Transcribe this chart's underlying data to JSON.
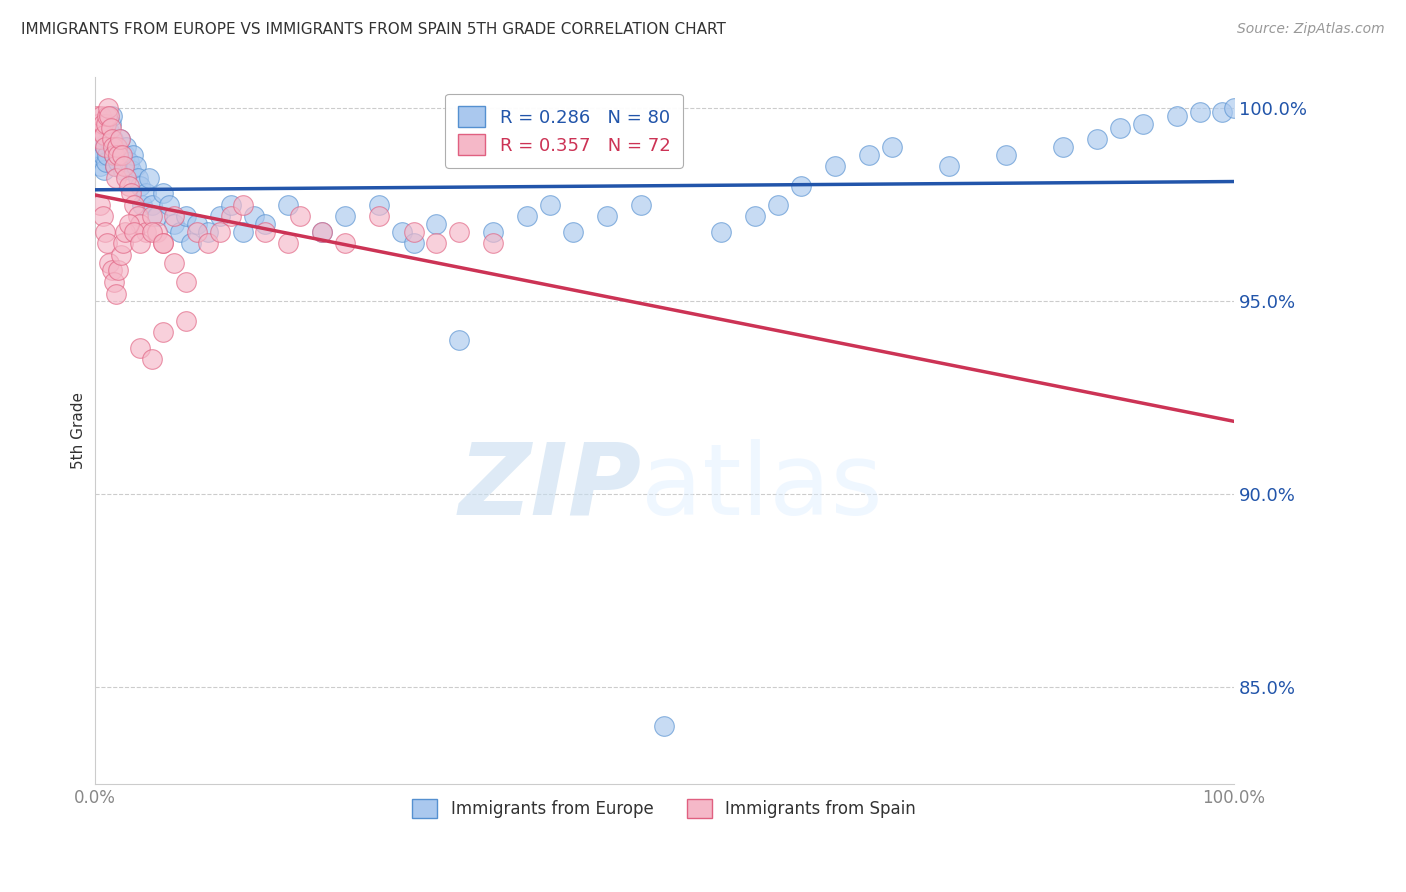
{
  "title": "IMMIGRANTS FROM EUROPE VS IMMIGRANTS FROM SPAIN 5TH GRADE CORRELATION CHART",
  "source_text": "Source: ZipAtlas.com",
  "ylabel": "5th Grade",
  "watermark_zip": "ZIP",
  "watermark_atlas": "atlas",
  "xlim": [
    0.0,
    1.0
  ],
  "ylim": [
    0.825,
    1.008
  ],
  "yticks": [
    0.85,
    0.9,
    0.95,
    1.0
  ],
  "ytick_labels": [
    "85.0%",
    "90.0%",
    "95.0%",
    "100.0%"
  ],
  "xticks": [
    0.0,
    0.1,
    0.2,
    0.3,
    0.4,
    0.5,
    0.6,
    0.7,
    0.8,
    0.9,
    1.0
  ],
  "xtick_labels_show": [
    "0.0%",
    "",
    "",
    "",
    "",
    "",
    "",
    "",
    "",
    "",
    "100.0%"
  ],
  "blue_color": "#aac8ee",
  "pink_color": "#f5b8c8",
  "blue_edge_color": "#5590d0",
  "pink_edge_color": "#e06080",
  "blue_line_color": "#2255aa",
  "pink_line_color": "#cc3355",
  "legend_blue_R": "0.286",
  "legend_blue_N": "80",
  "legend_pink_R": "0.357",
  "legend_pink_N": "72",
  "legend_blue_label": "Immigrants from Europe",
  "legend_pink_label": "Immigrants from Spain",
  "blue_x": [
    0.003,
    0.004,
    0.005,
    0.006,
    0.007,
    0.008,
    0.009,
    0.01,
    0.011,
    0.012,
    0.013,
    0.014,
    0.015,
    0.016,
    0.017,
    0.018,
    0.019,
    0.02,
    0.021,
    0.022,
    0.023,
    0.025,
    0.027,
    0.028,
    0.03,
    0.032,
    0.034,
    0.036,
    0.038,
    0.04,
    0.042,
    0.045,
    0.048,
    0.05,
    0.055,
    0.06,
    0.065,
    0.07,
    0.075,
    0.08,
    0.085,
    0.09,
    0.1,
    0.11,
    0.12,
    0.13,
    0.14,
    0.15,
    0.17,
    0.2,
    0.22,
    0.25,
    0.27,
    0.28,
    0.3,
    0.32,
    0.35,
    0.38,
    0.4,
    0.42,
    0.45,
    0.48,
    0.5,
    0.55,
    0.58,
    0.6,
    0.62,
    0.65,
    0.68,
    0.7,
    0.75,
    0.8,
    0.85,
    0.88,
    0.9,
    0.92,
    0.95,
    0.97,
    0.99,
    1.0
  ],
  "blue_y": [
    0.99,
    0.988,
    0.985,
    0.992,
    0.988,
    0.984,
    0.99,
    0.986,
    0.988,
    0.992,
    0.994,
    0.996,
    0.998,
    0.992,
    0.988,
    0.985,
    0.99,
    0.988,
    0.986,
    0.992,
    0.988,
    0.984,
    0.988,
    0.99,
    0.986,
    0.984,
    0.988,
    0.985,
    0.982,
    0.98,
    0.975,
    0.978,
    0.982,
    0.975,
    0.972,
    0.978,
    0.975,
    0.97,
    0.968,
    0.972,
    0.965,
    0.97,
    0.968,
    0.972,
    0.975,
    0.968,
    0.972,
    0.97,
    0.975,
    0.968,
    0.972,
    0.975,
    0.968,
    0.965,
    0.97,
    0.94,
    0.968,
    0.972,
    0.975,
    0.968,
    0.972,
    0.975,
    0.84,
    0.968,
    0.972,
    0.975,
    0.98,
    0.985,
    0.988,
    0.99,
    0.985,
    0.988,
    0.99,
    0.992,
    0.995,
    0.996,
    0.998,
    0.999,
    0.999,
    1.0
  ],
  "pink_x": [
    0.002,
    0.003,
    0.004,
    0.005,
    0.006,
    0.007,
    0.008,
    0.009,
    0.01,
    0.011,
    0.012,
    0.013,
    0.014,
    0.015,
    0.016,
    0.017,
    0.018,
    0.019,
    0.02,
    0.021,
    0.022,
    0.024,
    0.026,
    0.028,
    0.03,
    0.032,
    0.035,
    0.038,
    0.04,
    0.045,
    0.05,
    0.055,
    0.06,
    0.07,
    0.08,
    0.09,
    0.1,
    0.11,
    0.12,
    0.13,
    0.15,
    0.17,
    0.18,
    0.2,
    0.22,
    0.25,
    0.28,
    0.3,
    0.32,
    0.35,
    0.005,
    0.007,
    0.009,
    0.011,
    0.013,
    0.015,
    0.017,
    0.019,
    0.021,
    0.023,
    0.025,
    0.027,
    0.03,
    0.035,
    0.04,
    0.05,
    0.06,
    0.07,
    0.08,
    0.04,
    0.05,
    0.06
  ],
  "pink_y": [
    0.998,
    0.996,
    0.994,
    0.992,
    0.998,
    0.996,
    0.993,
    0.99,
    0.996,
    0.998,
    1.0,
    0.998,
    0.995,
    0.992,
    0.99,
    0.988,
    0.985,
    0.982,
    0.99,
    0.988,
    0.992,
    0.988,
    0.985,
    0.982,
    0.98,
    0.978,
    0.975,
    0.972,
    0.97,
    0.968,
    0.972,
    0.968,
    0.965,
    0.972,
    0.945,
    0.968,
    0.965,
    0.968,
    0.972,
    0.975,
    0.968,
    0.965,
    0.972,
    0.968,
    0.965,
    0.972,
    0.968,
    0.965,
    0.968,
    0.965,
    0.975,
    0.972,
    0.968,
    0.965,
    0.96,
    0.958,
    0.955,
    0.952,
    0.958,
    0.962,
    0.965,
    0.968,
    0.97,
    0.968,
    0.965,
    0.968,
    0.965,
    0.96,
    0.955,
    0.938,
    0.935,
    0.942
  ]
}
